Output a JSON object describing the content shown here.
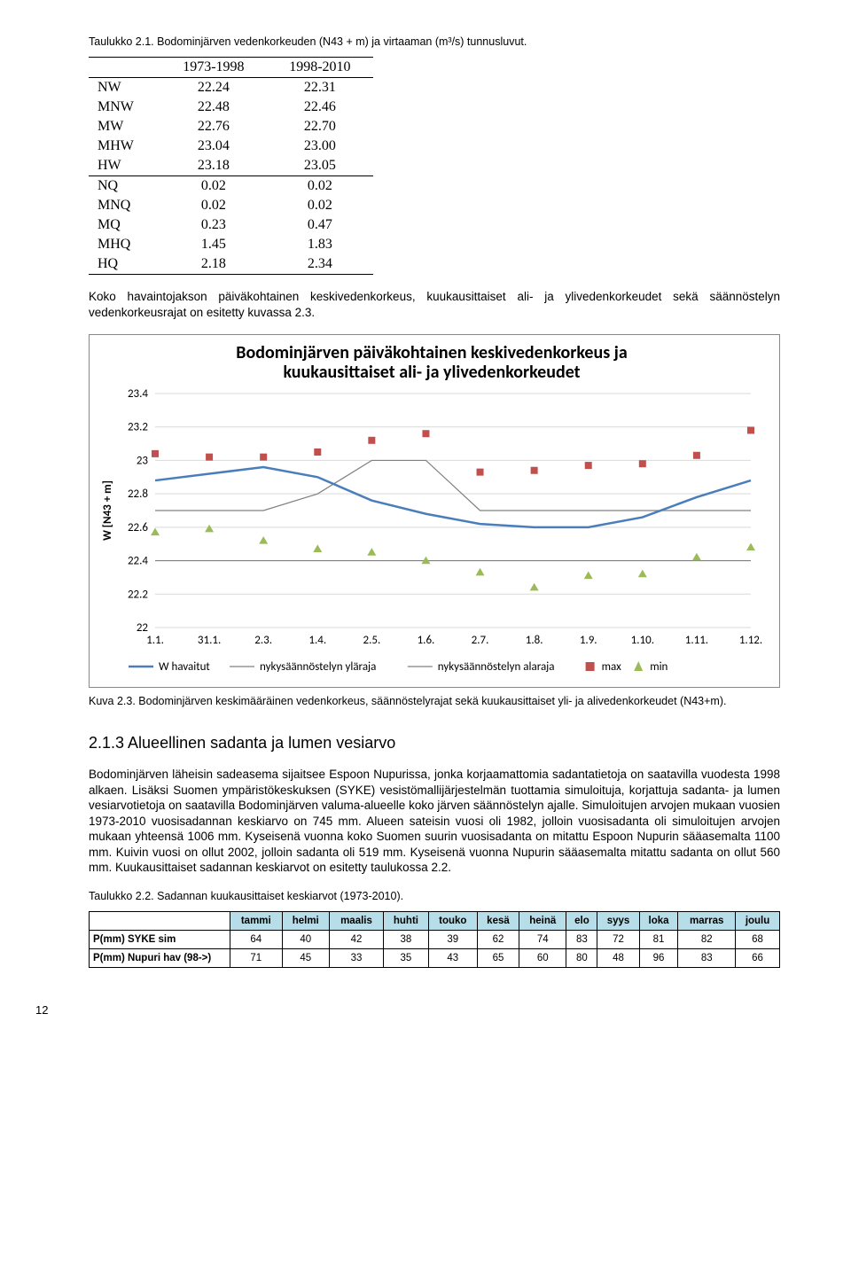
{
  "table1": {
    "caption": "Taulukko 2.1. Bodominjärven vedenkorkeuden (N43 + m) ja virtaaman (m³/s) tunnusluvut.",
    "headers": [
      "",
      "1973-1998",
      "1998-2010"
    ],
    "rows": [
      {
        "label": "NW",
        "a": "22.24",
        "b": "22.31"
      },
      {
        "label": "MNW",
        "a": "22.48",
        "b": "22.46"
      },
      {
        "label": "MW",
        "a": "22.76",
        "b": "22.70"
      },
      {
        "label": "MHW",
        "a": "23.04",
        "b": "23.00"
      },
      {
        "label": "HW",
        "a": "23.18",
        "b": "23.05"
      }
    ],
    "rows2": [
      {
        "label": "NQ",
        "a": "0.02",
        "b": "0.02"
      },
      {
        "label": "MNQ",
        "a": "0.02",
        "b": "0.02"
      },
      {
        "label": "MQ",
        "a": "0.23",
        "b": "0.47"
      },
      {
        "label": "MHQ",
        "a": "1.45",
        "b": "1.83"
      },
      {
        "label": "HQ",
        "a": "2.18",
        "b": "2.34"
      }
    ]
  },
  "para1": "Koko havaintojakson päiväkohtainen keskivedenkorkeus, kuukausittaiset ali- ja ylivedenkorkeudet sekä säännöstelyn vedenkorkeusrajat on esitetty kuvassa 2.3.",
  "chart": {
    "title": "Bodominjärven päiväkohtainen keskivedenkorkeus ja kuukausittaiset ali- ja ylivedenkorkeudet",
    "title_fontsize": 20,
    "title_weight": "bold",
    "ylabel": "W [N43 + m]",
    "ylabel_fontsize": 13,
    "ylabel_weight": "bold",
    "ylim": [
      22,
      23.4
    ],
    "ytick_step": 0.2,
    "yticks": [
      "22",
      "22.2",
      "22.4",
      "22.6",
      "22.8",
      "23",
      "23.2",
      "23.4"
    ],
    "xticks": [
      "1.1.",
      "31.1.",
      "2.3.",
      "1.4.",
      "2.5.",
      "1.6.",
      "2.7.",
      "1.8.",
      "1.9.",
      "1.10.",
      "1.11.",
      "1.12."
    ],
    "background_color": "#ffffff",
    "grid_color": "#d9d9d9",
    "series": {
      "w_havaitut": {
        "label": "W havaitut",
        "color": "#4a7ebb",
        "width": 2.5,
        "values": [
          22.88,
          22.92,
          22.96,
          22.9,
          22.76,
          22.68,
          22.62,
          22.6,
          22.6,
          22.66,
          22.78,
          22.88
        ]
      },
      "ylaraja": {
        "label": "nykysäännöstelyn yläraja",
        "color": "#808080",
        "width": 1.2,
        "values": [
          22.7,
          22.7,
          22.7,
          22.8,
          23.0,
          23.0,
          22.7,
          22.7,
          22.7,
          22.7,
          22.7,
          22.7
        ]
      },
      "alaraja": {
        "label": "nykysäännöstelyn alaraja",
        "color": "#808080",
        "width": 1.2,
        "values": [
          22.4,
          22.4,
          22.4,
          22.4,
          22.4,
          22.4,
          22.4,
          22.4,
          22.4,
          22.4,
          22.4,
          22.4
        ]
      },
      "max": {
        "label": "max",
        "marker": "square",
        "color": "#c0504d",
        "size": 8,
        "values": [
          23.04,
          23.02,
          23.02,
          23.05,
          23.12,
          23.16,
          22.93,
          22.94,
          22.97,
          22.98,
          23.03,
          23.18
        ]
      },
      "min": {
        "label": "min",
        "marker": "triangle",
        "color": "#9bbb59",
        "size": 8,
        "values": [
          22.57,
          22.59,
          22.52,
          22.47,
          22.45,
          22.4,
          22.33,
          22.24,
          22.31,
          22.32,
          22.42,
          22.48
        ]
      }
    },
    "legend_items": [
      "W havaitut",
      "nykysäännöstelyn yläraja",
      "nykysäännöstelyn alaraja",
      "max",
      "min"
    ]
  },
  "chart_caption": "Kuva 2.3. Bodominjärven keskimääräinen vedenkorkeus, säännöstelyrajat sekä kuukausittaiset yli- ja alivedenkorkeudet (N43+m).",
  "section_title": "2.1.3 Alueellinen sadanta ja lumen vesiarvo",
  "para2": "Bodominjärven läheisin sadeasema sijaitsee Espoon Nupurissa, jonka korjaamattomia sadantatietoja on saatavilla vuodesta 1998 alkaen. Lisäksi Suomen ympäristökeskuksen (SYKE) vesistömallijärjestelmän tuottamia simuloituja, korjattuja sadanta- ja lumen vesiarvotietoja on saatavilla Bodominjärven valuma-alueelle koko järven säännöstelyn ajalle. Simuloitujen arvojen mukaan vuosien 1973-2010 vuosisadannan keskiarvo on 745 mm. Alueen sateisin vuosi oli 1982, jolloin vuosisadanta oli simuloitujen arvojen mukaan yhteensä 1006 mm. Kyseisenä vuonna koko Suomen suurin vuosisadanta on mitattu Espoon Nupurin sääasemalta 1100 mm. Kuivin vuosi on ollut 2002, jolloin sadanta oli 519 mm. Kyseisenä vuonna Nupurin sääasemalta mitattu sadanta on ollut 560 mm. Kuukausittaiset sadannan keskiarvot on esitetty taulukossa 2.2.",
  "table2": {
    "caption": "Taulukko 2.2. Sadannan kuukausittaiset keskiarvot (1973-2010).",
    "headers": [
      "",
      "tammi",
      "helmi",
      "maalis",
      "huhti",
      "touko",
      "kesä",
      "heinä",
      "elo",
      "syys",
      "loka",
      "marras",
      "joulu"
    ],
    "header_bg": "#b6dde8",
    "rows": [
      {
        "label": "P(mm) SYKE sim",
        "vals": [
          "64",
          "40",
          "42",
          "38",
          "39",
          "62",
          "74",
          "83",
          "72",
          "81",
          "82",
          "68"
        ]
      },
      {
        "label": "P(mm) Nupuri hav (98->)",
        "vals": [
          "71",
          "45",
          "33",
          "35",
          "43",
          "65",
          "60",
          "80",
          "48",
          "96",
          "83",
          "66"
        ]
      }
    ]
  },
  "page_number": "12"
}
